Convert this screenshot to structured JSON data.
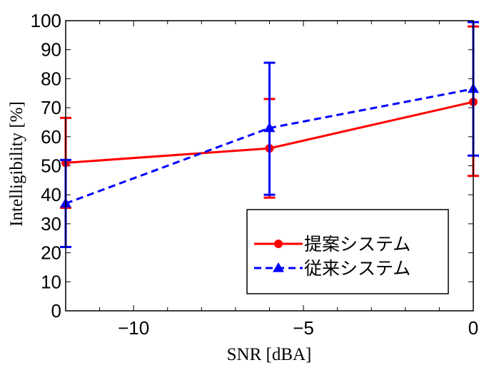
{
  "chart_data": {
    "type": "line",
    "title": "",
    "xlabel": "SNR [dBA]",
    "ylabel": "Intelligibility [%]",
    "xlim": [
      -12,
      0
    ],
    "ylim": [
      0,
      100
    ],
    "x_ticks": [
      -10,
      -5,
      0
    ],
    "x_tick_labels": [
      "−10",
      "−5",
      "0"
    ],
    "y_ticks": [
      0,
      10,
      20,
      30,
      40,
      50,
      60,
      70,
      80,
      90,
      100
    ],
    "y_tick_labels": [
      "0",
      "10",
      "20",
      "30",
      "40",
      "50",
      "60",
      "70",
      "80",
      "90",
      "100"
    ],
    "grid": false,
    "legend_position": "bottom-right",
    "series": [
      {
        "name": "提案システム",
        "color": "#ff0000",
        "line_style": "solid",
        "marker": "circle",
        "x": [
          -12,
          -6,
          0
        ],
        "y": [
          51,
          56,
          72
        ],
        "err_low": [
          35.5,
          39,
          46.5
        ],
        "err_high": [
          66.5,
          73,
          98
        ]
      },
      {
        "name": "従来システム",
        "color": "#0000ff",
        "line_style": "dashed",
        "marker": "triangle",
        "x": [
          -12,
          -6,
          0
        ],
        "y": [
          37,
          63,
          76.5
        ],
        "err_low": [
          22,
          40,
          53.5
        ],
        "err_high": [
          52,
          85.5,
          99.5
        ]
      }
    ]
  }
}
